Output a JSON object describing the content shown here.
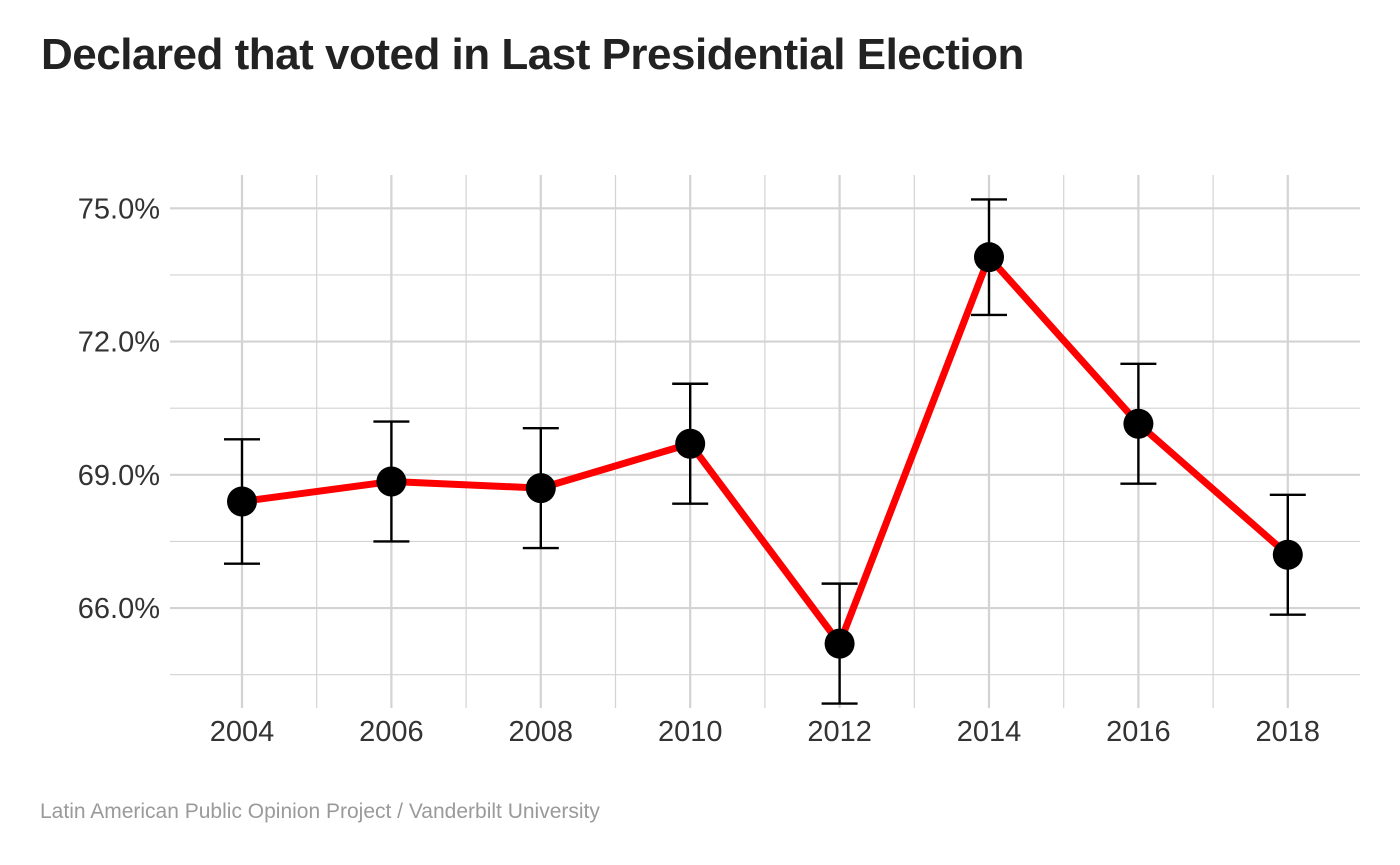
{
  "title": "Declared that voted in Last Presidential Election",
  "caption": "Latin American Public Opinion Project / Vanderbilt University",
  "colors": {
    "line": "#ff0000",
    "point": "#000000",
    "errorbar": "#000000",
    "grid": "#d3d3d3"
  },
  "chart_data": {
    "type": "line",
    "x": [
      "2004",
      "2006",
      "2008",
      "2010",
      "2012",
      "2014",
      "2016",
      "2018"
    ],
    "series": [
      {
        "values": [
          68.4,
          68.85,
          68.7,
          69.7,
          65.2,
          73.9,
          70.15,
          67.2
        ],
        "lower": [
          67.0,
          67.5,
          67.35,
          68.35,
          63.85,
          72.6,
          68.8,
          65.85
        ],
        "upper": [
          69.8,
          70.2,
          70.05,
          71.05,
          66.55,
          75.2,
          71.5,
          68.55
        ]
      }
    ],
    "y_ticks": [
      "66.0%",
      "69.0%",
      "72.0%",
      "75.0%"
    ],
    "y_tick_values": [
      66,
      69,
      72,
      75
    ],
    "ylim": [
      63.75,
      75.75
    ],
    "grid": true,
    "legend": "none"
  }
}
